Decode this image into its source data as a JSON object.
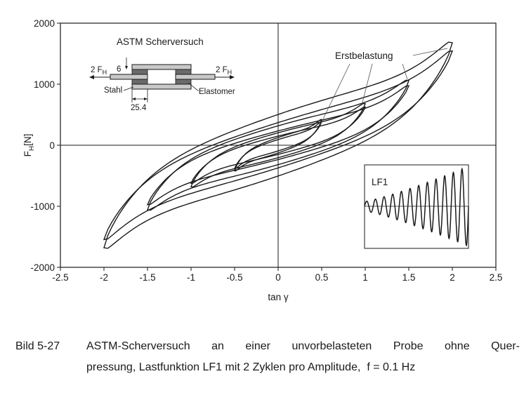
{
  "chart_data": {
    "type": "line",
    "title": "",
    "xlabel": "tan γ",
    "ylabel": "F",
    "ylabel_sub": "H",
    "ylabel_unit": "[N]",
    "xlim": [
      -2.5,
      2.5
    ],
    "ylim": [
      -2000,
      2000
    ],
    "x_ticks": [
      "-2.5",
      "-2",
      "-1.5",
      "-1",
      "-0.5",
      "0",
      "0.5",
      "1",
      "1.5",
      "2",
      "2.5"
    ],
    "y_ticks": [
      "2000",
      "1000",
      "0",
      "-1000",
      "-2000"
    ],
    "grid": false,
    "zero_lines": true,
    "series": [
      {
        "amplitude": 0.5,
        "peak_force": 420
      },
      {
        "amplitude": 1.0,
        "peak_force": 680
      },
      {
        "amplitude": 1.5,
        "peak_force": 1060
      },
      {
        "amplitude": 2.0,
        "peak_force": 1680
      }
    ],
    "annotations": {
      "erstbelastung": "Erstbelastung",
      "inset_title": "ASTM Scherversuch",
      "force_left": "2 F",
      "force_left_sub": "H",
      "force_right": "2 F",
      "force_right_sub": "H",
      "dim_thickness": "6",
      "label_steel": "Stahl",
      "label_elastomer": "Elastomer",
      "dim_width": "25.4",
      "load_function": "LF1"
    }
  },
  "caption": {
    "number": "Bild 5-27",
    "line1": "ASTM-Scherversuch an einer unvorbelasteten Probe ohne Quer-",
    "line2": "pressung, Lastfunktion LF1 mit 2 Zyklen pro Amplitude,",
    "formula": "f = 0.1 Hz"
  }
}
